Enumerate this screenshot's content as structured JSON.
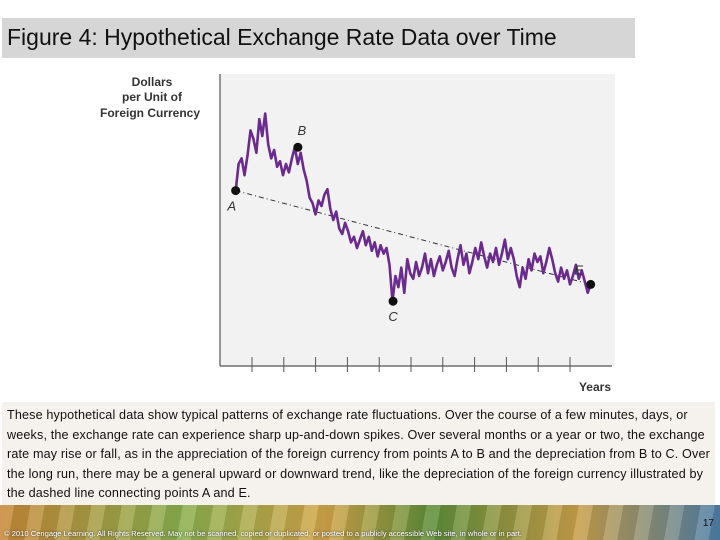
{
  "slide": {
    "title": "Figure 4: Hypothetical Exchange Rate Data over Time",
    "caption": "These hypothetical data show typical patterns of exchange rate fluctuations. Over the course of a few minutes, days, or weeks, the exchange rate can experience sharp up-and-down spikes. Over several months or a year or two, the exchange rate may rise or fall, as in the appreciation of the foreign currency from points A to B and the depreciation from B to C. Over the long run, there may be a general upward or downward trend, like the depreciation of the foreign currency illustrated by the dashed line connecting points A and E.",
    "copyright": "© 2010 Cengage Learning. All Rights Reserved. May not be scanned, copied or duplicated, or posted to a publicly accessible Web site, in whole or in part.",
    "page_number": "17"
  },
  "chart_data": {
    "type": "line",
    "ylabel_lines": [
      "Dollars",
      "per Unit of",
      "Foreign Currency"
    ],
    "xlabel": "Years",
    "series_color": "#6a2a8e",
    "points": [
      {
        "label": "A",
        "x": 0.01,
        "y": 0.605
      },
      {
        "label": "B",
        "x": 0.18,
        "y": 0.76
      },
      {
        "label": "C",
        "x": 0.44,
        "y": 0.21
      },
      {
        "label": "E",
        "x": 0.98,
        "y": 0.27
      }
    ],
    "trend_line": {
      "from": "A",
      "to": "E",
      "style": "dashed"
    },
    "series": [
      0.605,
      0.7,
      0.72,
      0.66,
      0.73,
      0.82,
      0.79,
      0.74,
      0.86,
      0.8,
      0.88,
      0.77,
      0.72,
      0.75,
      0.69,
      0.71,
      0.66,
      0.7,
      0.67,
      0.72,
      0.76,
      0.7,
      0.74,
      0.68,
      0.64,
      0.58,
      0.56,
      0.52,
      0.57,
      0.55,
      0.59,
      0.61,
      0.54,
      0.5,
      0.53,
      0.47,
      0.45,
      0.49,
      0.46,
      0.42,
      0.44,
      0.4,
      0.43,
      0.46,
      0.41,
      0.44,
      0.39,
      0.42,
      0.37,
      0.41,
      0.38,
      0.4,
      0.34,
      0.21,
      0.3,
      0.26,
      0.33,
      0.24,
      0.36,
      0.31,
      0.29,
      0.35,
      0.3,
      0.33,
      0.38,
      0.31,
      0.36,
      0.3,
      0.34,
      0.37,
      0.32,
      0.35,
      0.39,
      0.33,
      0.3,
      0.36,
      0.41,
      0.34,
      0.38,
      0.31,
      0.35,
      0.4,
      0.36,
      0.42,
      0.37,
      0.33,
      0.38,
      0.35,
      0.4,
      0.34,
      0.38,
      0.43,
      0.36,
      0.4,
      0.36,
      0.3,
      0.26,
      0.33,
      0.29,
      0.36,
      0.32,
      0.38,
      0.35,
      0.37,
      0.31,
      0.35,
      0.4,
      0.36,
      0.31,
      0.28,
      0.33,
      0.29,
      0.32,
      0.27,
      0.3,
      0.34,
      0.29,
      0.32,
      0.28,
      0.24,
      0.27
    ],
    "tick_count": 11
  }
}
